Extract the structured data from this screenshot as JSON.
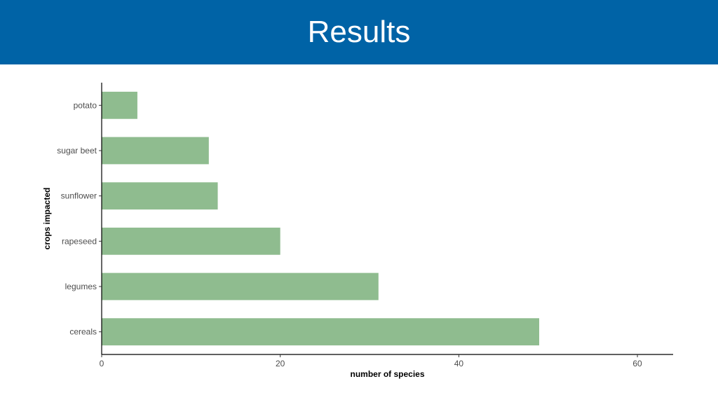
{
  "header": {
    "title": "Results",
    "background_color": "#0063a6"
  },
  "chart_data": {
    "type": "bar",
    "orientation": "horizontal",
    "categories": [
      "cereals",
      "legumes",
      "rapeseed",
      "sunflower",
      "sugar beet",
      "potato"
    ],
    "values": [
      49,
      31,
      20,
      13,
      12,
      4
    ],
    "xlabel": "number of species",
    "ylabel": "crops impacted",
    "xlim": [
      0,
      64
    ],
    "xticks": [
      0,
      20,
      40,
      60
    ],
    "xtick_labels": [
      "0",
      "20",
      "40",
      "60"
    ],
    "bar_color": "#8fbc8f",
    "grid": false
  }
}
